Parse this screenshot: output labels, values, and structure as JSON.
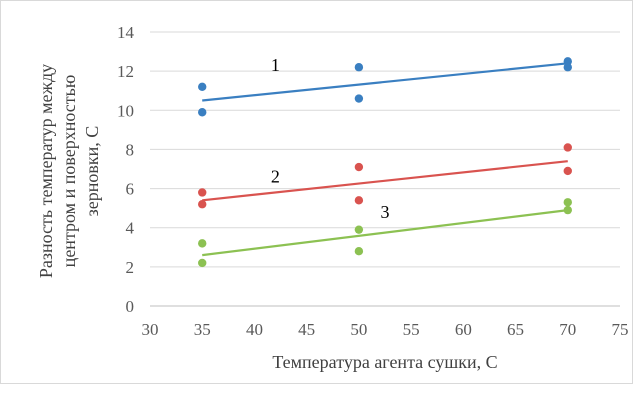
{
  "chart_data": {
    "type": "scatter",
    "xlabel": "Температура агента сушки, С",
    "ylabel_lines": [
      "Разность температур между",
      "центром и поверхностью",
      "зерновки, С"
    ],
    "xlim": [
      30,
      75
    ],
    "ylim": [
      0,
      14
    ],
    "x_ticks": [
      "30",
      "35",
      "40",
      "45",
      "50",
      "55",
      "60",
      "65",
      "70",
      "75"
    ],
    "y_ticks": [
      "0",
      "2",
      "4",
      "6",
      "8",
      "10",
      "12",
      "14"
    ],
    "grid": "horizontal",
    "legend": "none",
    "series": [
      {
        "label": "1",
        "color": "#3a7fc1",
        "points": [
          [
            35,
            11.2
          ],
          [
            35,
            9.9
          ],
          [
            50,
            12.2
          ],
          [
            50,
            10.6
          ],
          [
            70,
            12.5
          ],
          [
            70,
            12.2
          ]
        ],
        "trendline": [
          [
            35,
            10.5
          ],
          [
            70,
            12.4
          ]
        ]
      },
      {
        "label": "2",
        "color": "#d9534f",
        "points": [
          [
            35,
            5.8
          ],
          [
            35,
            5.2
          ],
          [
            50,
            7.1
          ],
          [
            50,
            5.4
          ],
          [
            70,
            8.1
          ],
          [
            70,
            6.9
          ]
        ],
        "trendline": [
          [
            35,
            5.4
          ],
          [
            70,
            7.4
          ]
        ]
      },
      {
        "label": "3",
        "color": "#8cc152",
        "points": [
          [
            35,
            3.2
          ],
          [
            35,
            2.2
          ],
          [
            50,
            3.9
          ],
          [
            50,
            2.8
          ],
          [
            70,
            5.3
          ],
          [
            70,
            4.9
          ]
        ],
        "trendline": [
          [
            35,
            2.6
          ],
          [
            70,
            4.9
          ]
        ]
      }
    ]
  }
}
